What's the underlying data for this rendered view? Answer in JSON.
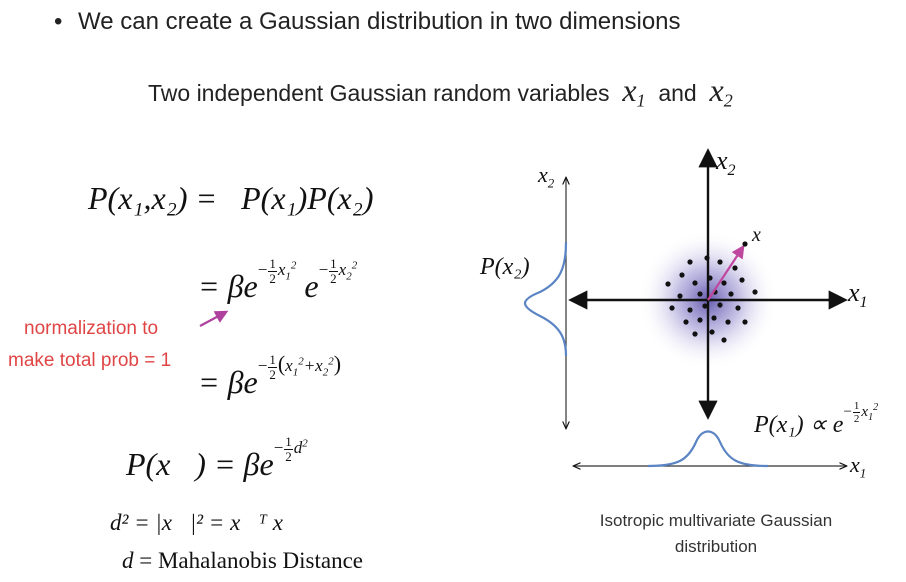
{
  "bullet": {
    "symbol": "•",
    "text": "We can create a Gaussian distribution in two dimensions"
  },
  "subheading": {
    "text": "Two independent Gaussian random variables",
    "var1": "x",
    "var1_sub": "1",
    "conj": "and",
    "var2": "x",
    "var2_sub": "2"
  },
  "equations": {
    "line1_lhs": "P(x₁,x₂) =",
    "line1_rhs": "P(x₁)P(x₂)",
    "line2": "= βe",
    "line3": "= βe",
    "line4_lhs": "P(x⃗) = βe",
    "line5": "d² = |x⃗|² = x⃗ᵀ x⃗",
    "line6_var": "d",
    "line6_text": "= Mahalanobis Distance"
  },
  "annotation": {
    "line1": "normalization to",
    "line2": "make total prob = 1",
    "color": "#e04545",
    "arrow_color": "#b0409e"
  },
  "diagram": {
    "axis_x_label": "x",
    "axis_x_sub": "1",
    "axis_y_label": "x",
    "axis_y_sub": "2",
    "vector_label": "x⃗",
    "left_axis_label": "x",
    "left_axis_sub": "2",
    "left_curve_label": "P(x₂)",
    "bottom_axis_label": "x",
    "bottom_axis_sub": "1",
    "bottom_curve_label": "P(x₁) ∝ e",
    "curve_color": "#5b84c4",
    "blob_color": "#6a5fb0",
    "vector_color": "#c0479f"
  },
  "caption": {
    "line1": "Isotropic multivariate Gaussian",
    "line2": "distribution"
  }
}
